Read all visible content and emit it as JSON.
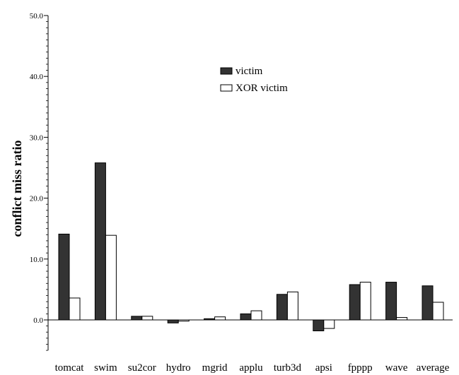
{
  "chart_data": {
    "type": "bar",
    "title": "",
    "xlabel": "",
    "ylabel": "conflict miss ratio",
    "ylim": [
      -5,
      50
    ],
    "yticks": [
      0,
      10,
      20,
      30,
      40,
      50
    ],
    "ytick_labels": [
      "0.0",
      "10.0",
      "20.0",
      "30.0",
      "40.0",
      "50.0"
    ],
    "categories": [
      "tomcat",
      "swim",
      "su2cor",
      "hydro",
      "mgrid",
      "applu",
      "turb3d",
      "apsi",
      "fpppp",
      "wave",
      "average"
    ],
    "series": [
      {
        "name": "victim",
        "color": "#333333",
        "values": [
          14.1,
          25.8,
          0.6,
          -0.5,
          0.2,
          1.0,
          4.2,
          -1.8,
          5.8,
          6.2,
          5.6
        ]
      },
      {
        "name": "XOR victim",
        "color": "#ffffff",
        "values": [
          3.6,
          13.9,
          0.6,
          -0.2,
          0.5,
          1.5,
          4.6,
          -1.4,
          6.2,
          0.4,
          2.9
        ]
      }
    ],
    "legend": "upper-middle",
    "grid": false
  }
}
